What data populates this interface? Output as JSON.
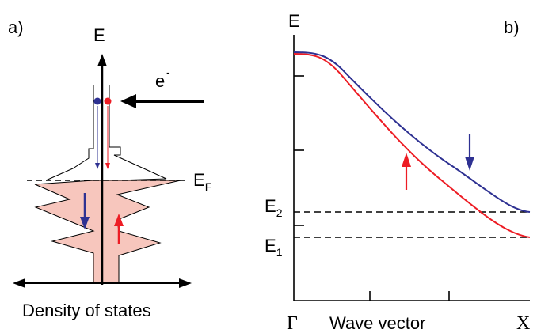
{
  "panel_a": {
    "label": "a)",
    "energy_axis": "E",
    "electron": "e",
    "electron_charge": "-",
    "fermi": "E",
    "fermi_sub": "F",
    "xlabel": "Density of states"
  },
  "panel_b": {
    "label": "b)",
    "energy_axis": "E",
    "e2": "E",
    "e2_sub": "2",
    "e1": "E",
    "e1_sub": "1",
    "x_start": "Γ",
    "x_end": "X",
    "xlabel": "Wave vector"
  },
  "colors": {
    "spin_down": "#2e3192",
    "spin_up": "#ed1c24",
    "dos_fill": "#f7c6bd",
    "ink": "#000000"
  }
}
